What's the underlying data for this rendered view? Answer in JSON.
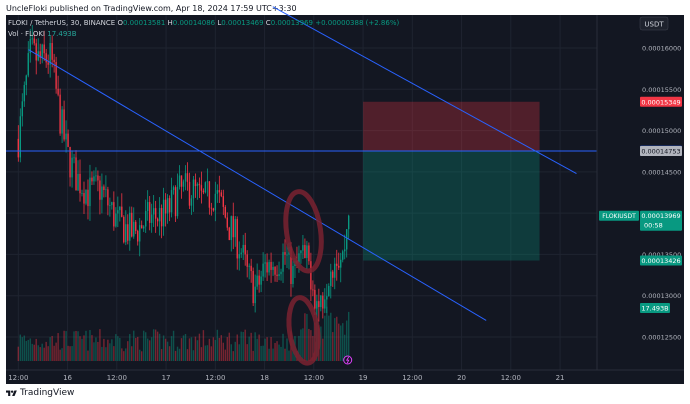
{
  "header": {
    "publisher_line": "UncleFloki published on TradingView.com, Apr 18, 2024 17:59 UTC+3:30"
  },
  "footer": {
    "brand": "TradingView"
  },
  "legend": {
    "symbol": "FLOKI / TetherUS, 30, BINANCE",
    "o_label": "O",
    "o": "0.00013581",
    "h_label": "H",
    "h": "0.00014086",
    "l_label": "L",
    "l": "0.00013469",
    "c_label": "C",
    "c": "0.00013969",
    "change": "+0.00000388 (+2.86%)",
    "vol_label": "Vol · FLOKI",
    "vol": "17.493B"
  },
  "chart_data": {
    "type": "candlestick",
    "currency": "USDT",
    "y_ticks": [
      0.00016,
      0.000155,
      0.00015,
      0.000145,
      0.00014,
      0.000135,
      0.00013,
      0.000125
    ],
    "y_tick_labels": [
      "0.00016000",
      "0.00015500",
      "0.00015000",
      "0.00014500",
      "0.00014000",
      "0.00013500",
      "0.00013000",
      "0.00012500"
    ],
    "ylim": [
      0.000121,
      0.000164
    ],
    "x_ticks": [
      {
        "t": 0,
        "label": "12:00"
      },
      {
        "t": 12,
        "label": "16"
      },
      {
        "t": 24,
        "label": "12:00"
      },
      {
        "t": 36,
        "label": "17"
      },
      {
        "t": 48,
        "label": "12:00"
      },
      {
        "t": 60,
        "label": "18"
      },
      {
        "t": 72,
        "label": "12:00"
      },
      {
        "t": 84,
        "label": "19"
      },
      {
        "t": 96,
        "label": "12:00"
      },
      {
        "t": 108,
        "label": "20"
      },
      {
        "t": 120,
        "label": "12:00"
      },
      {
        "t": 132,
        "label": "21"
      }
    ],
    "xlim": [
      -3,
      141
    ],
    "candle_count": 167,
    "close_path": [
      [
        0,
        0.000149
      ],
      [
        3,
        0.0001595
      ],
      [
        5,
        0.0001585
      ],
      [
        8,
        0.0001588
      ],
      [
        10,
        0.000152
      ],
      [
        12,
        0.000147
      ],
      [
        14,
        0.0001445
      ],
      [
        17,
        0.0001425
      ],
      [
        20,
        0.000143
      ],
      [
        24,
        0.000139
      ],
      [
        28,
        0.0001375
      ],
      [
        32,
        0.0001395
      ],
      [
        36,
        0.0001398
      ],
      [
        39,
        0.0001425
      ],
      [
        42,
        0.000143
      ],
      [
        45,
        0.0001415
      ],
      [
        48,
        0.0001425
      ],
      [
        51,
        0.0001388
      ],
      [
        54,
        0.000136
      ],
      [
        56,
        0.0001322
      ],
      [
        58,
        0.0001305
      ],
      [
        60,
        0.0001335
      ],
      [
        63,
        0.0001342
      ],
      [
        65,
        0.000135
      ],
      [
        67,
        0.0001325
      ],
      [
        69,
        0.0001348
      ],
      [
        71,
        0.0001335
      ],
      [
        73,
        0.0001285
      ],
      [
        74,
        0.0001298
      ],
      [
        76,
        0.0001338
      ],
      [
        77.5,
        0.0001352
      ],
      [
        79,
        0.0001345
      ],
      [
        80.5,
        0.0001397
      ]
    ],
    "last": {
      "price": 0.00013969,
      "label": "0.00013969",
      "symbol": "FLOKIUSDT",
      "countdown": "00:58"
    },
    "price_labels": [
      {
        "price": 0.00015349,
        "label": "0.00015349",
        "color": "#f23645"
      },
      {
        "price": 0.00014755,
        "label": "0.00014755",
        "color": "#2962ff"
      },
      {
        "price": 0.00014753,
        "label": "0.00014753",
        "color": "#b2b5be"
      },
      {
        "price": 0.00013426,
        "label": "0.00013426",
        "color": "#089981"
      }
    ],
    "volume_label": "17.493B",
    "horizontal_line": 0.00014753,
    "trendlines": [
      {
        "t1": 2.5,
        "p1": 0.0001598,
        "t2": 114,
        "p2": 0.000127
      },
      {
        "t1": 62,
        "p1": 0.000165,
        "t2": 136,
        "p2": 0.0001448
      }
    ],
    "position": {
      "t_start": 84,
      "t_end": 127,
      "entry": 0.00014753,
      "stop": 0.00015349,
      "target": 0.00013426
    }
  }
}
